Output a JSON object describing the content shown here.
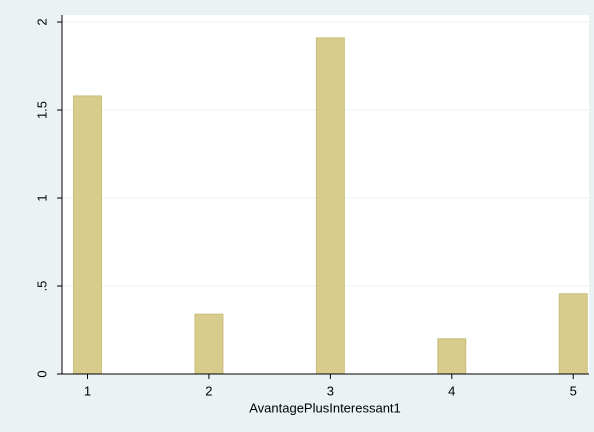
{
  "chart_data": {
    "type": "bar",
    "x_label": "AvantagePlusInteressant1",
    "x": [
      1,
      2,
      3,
      4,
      5
    ],
    "values": [
      1.58,
      0.34,
      1.91,
      0.2,
      0.456
    ],
    "color": "#d8cc8d",
    "xlim": [
      0.79,
      5.13
    ],
    "xticks": [
      1,
      2,
      3,
      4,
      5
    ],
    "ylim": [
      0,
      2.04
    ],
    "yticks": [
      0,
      {
        "value": 0.5,
        "label": ".5"
      },
      1,
      1.5,
      2
    ],
    "grid": true
  }
}
